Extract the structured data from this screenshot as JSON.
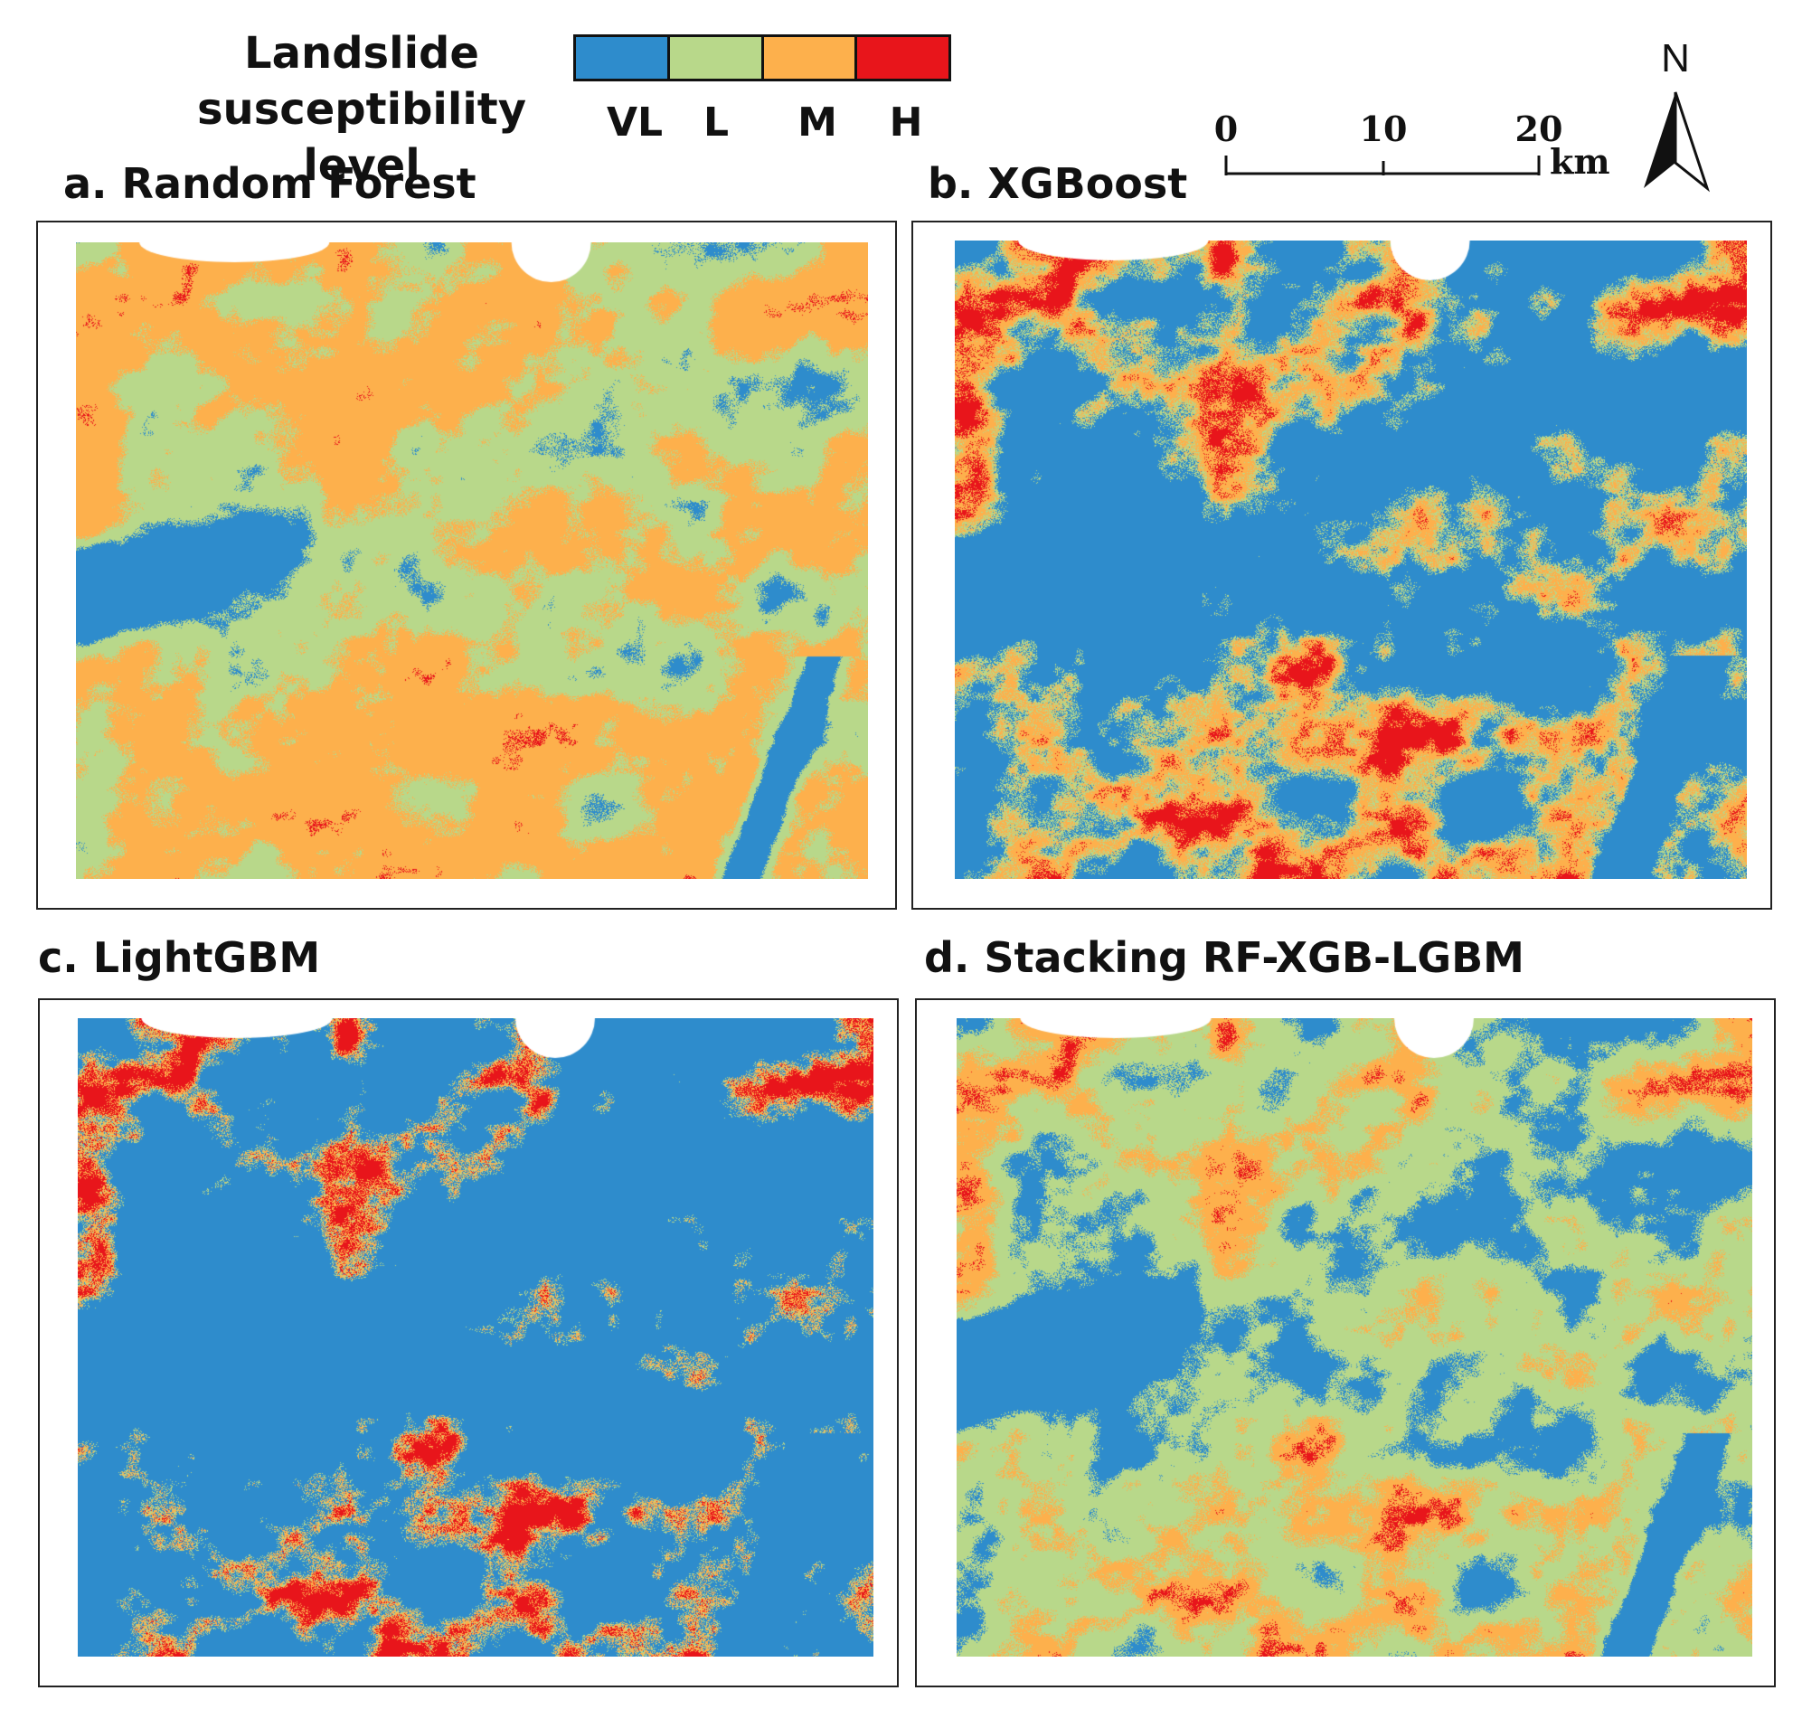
{
  "legend": {
    "title_line1": "Landslide",
    "title_line2": "susceptibility level",
    "classes": [
      {
        "label": "VL",
        "color": "#2e8ccc"
      },
      {
        "label": "L",
        "color": "#b8d88a"
      },
      {
        "label": "M",
        "color": "#fdb04c"
      },
      {
        "label": "H",
        "color": "#e8151b"
      }
    ]
  },
  "scale_bar": {
    "ticks": [
      "0",
      "10",
      "20"
    ],
    "unit": "km"
  },
  "north_arrow": {
    "letter": "N"
  },
  "panels": [
    {
      "title": "a. Random Forest",
      "weights": [
        0.14,
        0.36,
        0.43,
        0.07
      ],
      "seed": 11
    },
    {
      "title": "b. XGBoost",
      "weights": [
        0.55,
        0.08,
        0.15,
        0.22
      ],
      "seed": 23
    },
    {
      "title": "c. LightGBM",
      "weights": [
        0.68,
        0.03,
        0.07,
        0.22
      ],
      "seed": 37
    },
    {
      "title": "d. Stacking RF-XGB-LGBM",
      "weights": [
        0.34,
        0.33,
        0.2,
        0.13
      ],
      "seed": 51
    }
  ]
}
